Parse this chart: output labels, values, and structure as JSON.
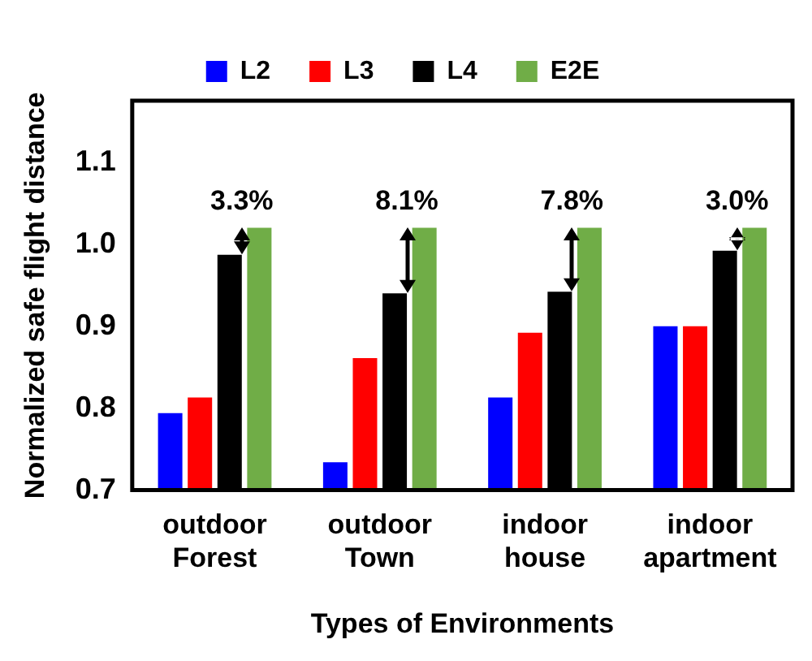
{
  "chart_data": {
    "type": "bar",
    "xlabel": "Types of Environments",
    "ylabel": "Normalized safe flight distance",
    "categories": [
      "outdoor Forest",
      "outdoor Town",
      "indoor house",
      "indoor apartment"
    ],
    "series": [
      {
        "name": "L2",
        "color": "#0000ff",
        "values": [
          0.794,
          0.734,
          0.813,
          0.9
        ]
      },
      {
        "name": "L3",
        "color": "#ff0000",
        "values": [
          0.813,
          0.861,
          0.892,
          0.9
        ]
      },
      {
        "name": "L4",
        "color": "#000000",
        "values": [
          0.987,
          0.94,
          0.942,
          0.992
        ]
      },
      {
        "name": "E2E",
        "color": "#70ad47",
        "values": [
          1.02,
          1.02,
          1.02,
          1.02
        ]
      }
    ],
    "annotations": [
      {
        "text": "3.3%",
        "x": "outdoor Forest",
        "y": 0.987
      },
      {
        "text": "8.1%",
        "x": "outdoor Town",
        "y": 0.94
      },
      {
        "text": "7.8%",
        "x": "indoor house",
        "y": 0.942
      },
      {
        "text": "3.0%",
        "x": "indoor apartment",
        "y": 0.992
      }
    ],
    "ylim": [
      0.7,
      1.175
    ],
    "yticks": [
      0.7,
      0.8,
      0.9,
      {
        "value": 1,
        "label": "1.0"
      },
      1.1
    ],
    "grid": false,
    "legend": "top"
  }
}
